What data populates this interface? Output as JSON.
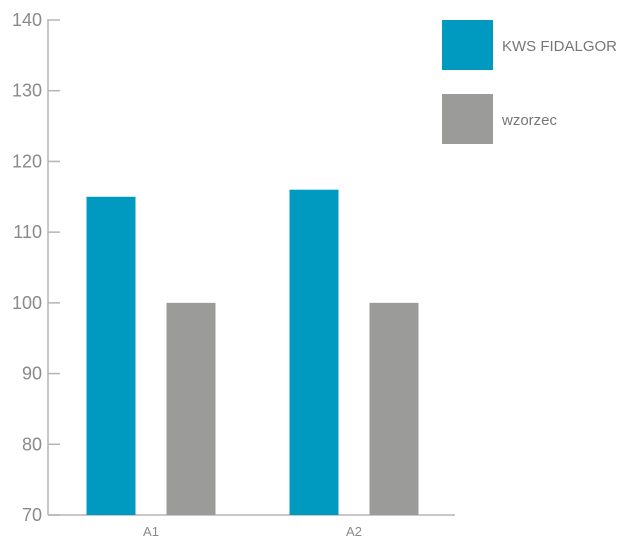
{
  "chart_data": {
    "type": "bar",
    "categories": [
      "A1",
      "A2"
    ],
    "series": [
      {
        "name": "KWS FIDALGOR",
        "values": [
          115,
          116
        ],
        "color": "#0099c0"
      },
      {
        "name": "wzorzec",
        "values": [
          100,
          100
        ],
        "color": "#9b9b9a"
      }
    ],
    "yticks": [
      70,
      80,
      90,
      100,
      110,
      120,
      130,
      140
    ],
    "ylim": [
      70,
      140
    ],
    "title": "",
    "xlabel": "",
    "ylabel": "",
    "grid": false,
    "legend_position": "top-right",
    "axis_color": "#b5b5b5"
  }
}
